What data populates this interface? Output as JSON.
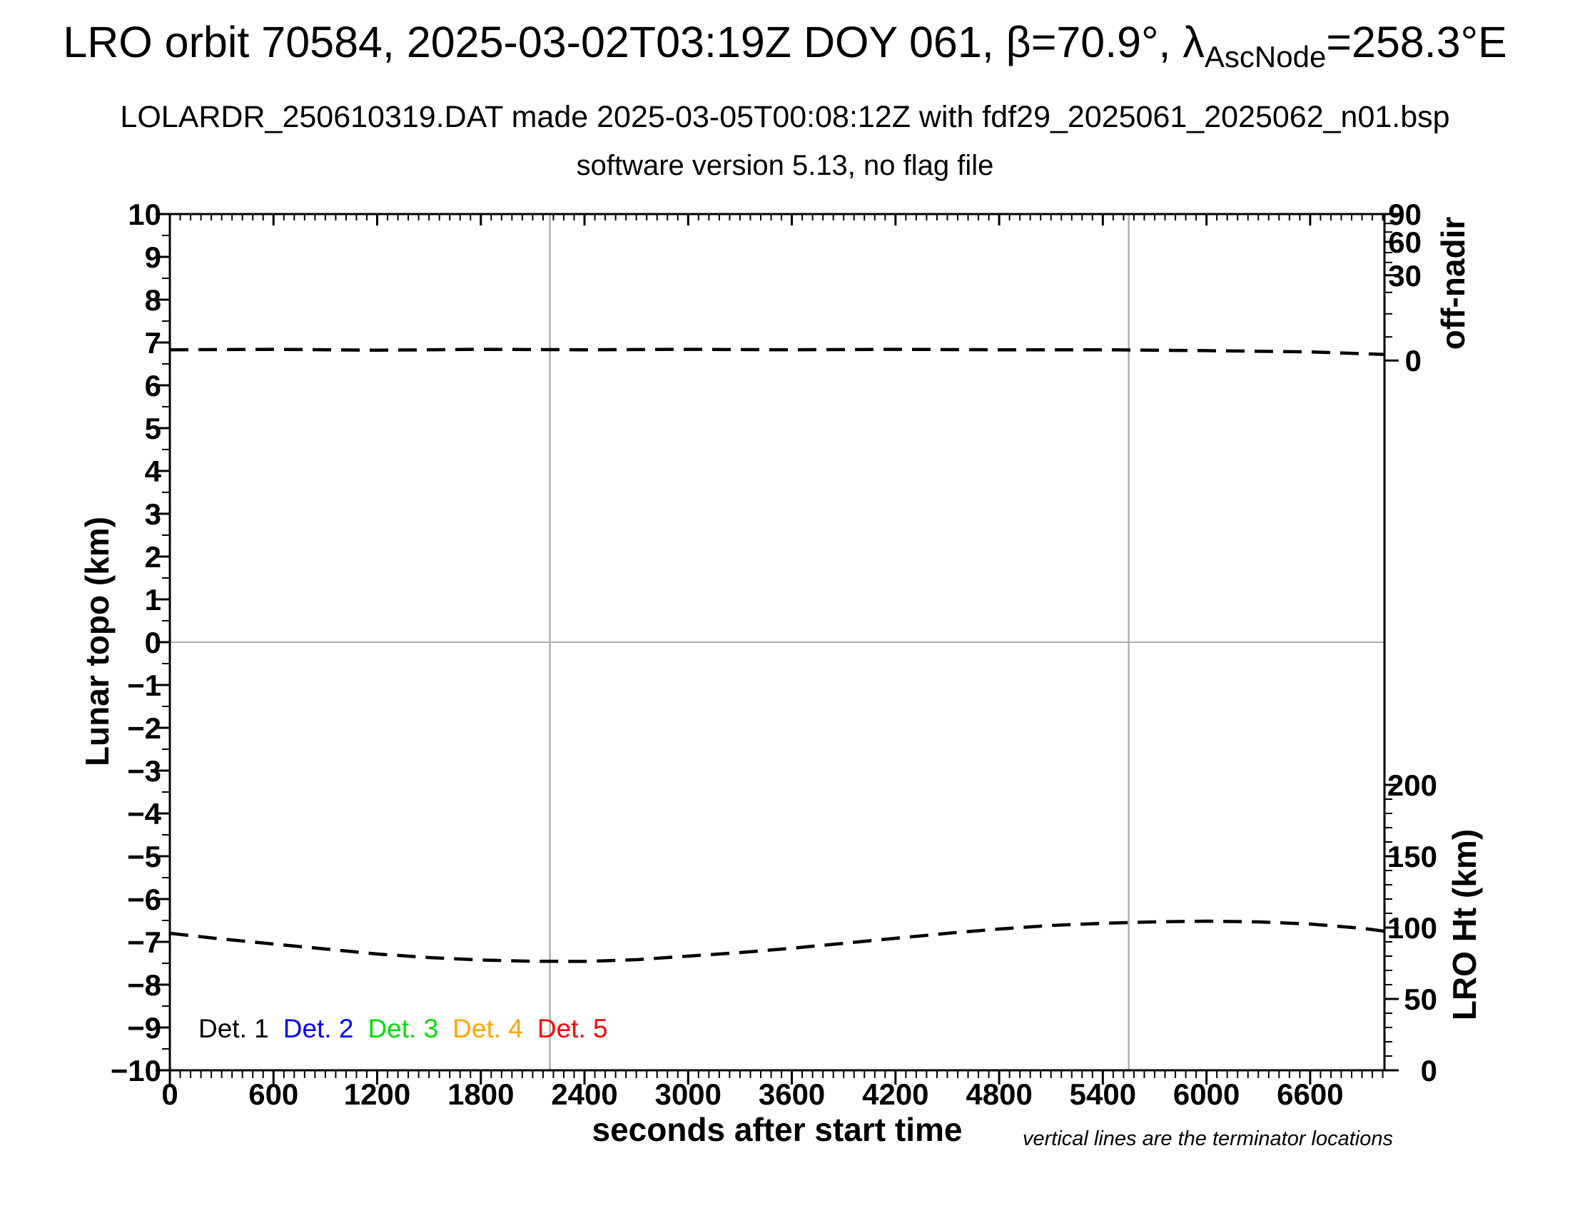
{
  "title": {
    "line1_prefix": "LRO orbit 70584, 2025-03-02T03:19Z DOY 061, β=70.9°, λ",
    "line1_subscript": "AscNode",
    "line1_suffix": "=258.3°E",
    "line2": "LOLARDR_250610319.DAT made 2025-03-05T00:08:12Z with fdf29_2025061_2025062_n01.bsp",
    "line3": "software version 5.13, no flag file"
  },
  "footnote": "vertical lines are the terminator locations",
  "legend": {
    "items": [
      {
        "label": "Det. 1",
        "color": "#000000"
      },
      {
        "label": "Det. 2",
        "color": "#0000ff"
      },
      {
        "label": "Det. 3",
        "color": "#00dd00"
      },
      {
        "label": "Det. 4",
        "color": "#ffa500"
      },
      {
        "label": "Det. 5",
        "color": "#ff0000"
      }
    ]
  },
  "chart_data": {
    "type": "line",
    "x_axis": {
      "label": "seconds after start time",
      "range": [
        0,
        7030
      ],
      "major_ticks": [
        0,
        600,
        1200,
        1800,
        2400,
        3000,
        3600,
        4200,
        4800,
        5400,
        6000,
        6600
      ],
      "minor_tick_step": 60
    },
    "y_left_axis": {
      "label": "Lunar topo (km)",
      "range": [
        -10,
        10
      ],
      "major_tick_step": 1,
      "minor_tick_step": 0.5
    },
    "y_right_off_nadir_axis": {
      "label": "off-nadir",
      "scale": "nonlinear",
      "major_tick_labels": [
        90,
        60,
        30,
        0
      ],
      "major_tick_pos_topo": [
        10,
        9.35,
        8.57,
        6.58
      ],
      "minor_tick_pos_topo": [
        9.78,
        9.58,
        9.1,
        8.87,
        8.17,
        7.67,
        7.13
      ]
    },
    "y_right_height_axis": {
      "label": "LRO Ht (km)",
      "range_km": [
        0,
        200
      ],
      "major_ticks_km": [
        200,
        150,
        100,
        50,
        0
      ],
      "minor_tick_step_km": 10
    },
    "terminator_lines_seconds": [
      2200,
      5550
    ],
    "zero_reference_line_topo": 0,
    "reference_line_color": "#b0b0b0",
    "legend_position": "inside bottom-left",
    "grid": "off",
    "series": [
      {
        "name": "off-nadir",
        "line_style": "dashed",
        "color": "#000000",
        "plotted_on": "left-axis topo-equivalent level; reads just above 0 on the nonlinear off-nadir scale",
        "points_t_topo": [
          [
            0,
            6.83
          ],
          [
            600,
            6.84
          ],
          [
            1200,
            6.82
          ],
          [
            1800,
            6.84
          ],
          [
            2400,
            6.83
          ],
          [
            3000,
            6.84
          ],
          [
            3600,
            6.83
          ],
          [
            4200,
            6.84
          ],
          [
            4800,
            6.83
          ],
          [
            5400,
            6.83
          ],
          [
            6000,
            6.81
          ],
          [
            6600,
            6.78
          ],
          [
            7030,
            6.72
          ]
        ]
      },
      {
        "name": "LRO Ht (km)",
        "line_style": "dashed",
        "color": "#000000",
        "plotted_on": "right height axis, km",
        "points_t_km": [
          [
            0,
            96
          ],
          [
            300,
            92
          ],
          [
            600,
            88.5
          ],
          [
            900,
            85
          ],
          [
            1200,
            81.5
          ],
          [
            1500,
            79
          ],
          [
            1800,
            77.3
          ],
          [
            2100,
            76.4
          ],
          [
            2400,
            76.3
          ],
          [
            2700,
            77.5
          ],
          [
            3000,
            80
          ],
          [
            3300,
            82.5
          ],
          [
            3600,
            85.5
          ],
          [
            3900,
            89
          ],
          [
            4200,
            92.5
          ],
          [
            4500,
            96
          ],
          [
            4800,
            99
          ],
          [
            5100,
            101.5
          ],
          [
            5400,
            103
          ],
          [
            5700,
            104
          ],
          [
            6000,
            104.5
          ],
          [
            6300,
            104
          ],
          [
            6600,
            102.5
          ],
          [
            6900,
            99.5
          ],
          [
            7030,
            97.5
          ]
        ]
      }
    ]
  }
}
